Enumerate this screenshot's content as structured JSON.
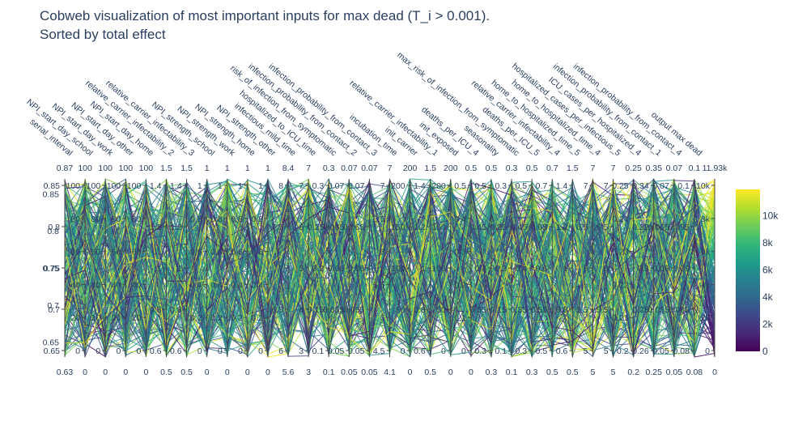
{
  "chart_data": {
    "type": "parallel_coordinates",
    "title_lines": [
      "Cobweb visualization of most important inputs for max dead (T_i > 0.001).",
      "Sorted by total effect"
    ],
    "dimensions": [
      {
        "label": "serial_interval",
        "max": "0.87",
        "min": "0.63",
        "ticks": [
          "0.85",
          "0.8",
          "0.75",
          "0.7",
          "0.65"
        ]
      },
      {
        "label": "NPI_start_day_school",
        "max": "100",
        "min": "0",
        "ticks": [
          "100",
          "80",
          "60",
          "40",
          "20",
          "0"
        ]
      },
      {
        "label": "NPI_start_day_work",
        "max": "100",
        "min": "0",
        "ticks": [
          "100",
          "80",
          "60",
          "40",
          "20",
          "0"
        ]
      },
      {
        "label": "NPI_start_day_other",
        "max": "100",
        "min": "0",
        "ticks": [
          "100",
          "80",
          "60",
          "40",
          "20",
          "0"
        ]
      },
      {
        "label": "NPI_start_day_home",
        "max": "100",
        "min": "0",
        "ticks": [
          "100",
          "80",
          "60",
          "40",
          "20",
          "0"
        ]
      },
      {
        "label": "relative_carrier_infectability_2",
        "max": "1.5",
        "min": "0.5",
        "ticks": [
          "1.4",
          "1.2",
          "1",
          "0.8",
          "0.6"
        ]
      },
      {
        "label": "relative_carrier_infectability_3",
        "max": "1.5",
        "min": "0.5",
        "ticks": [
          "1.4",
          "1.2",
          "1",
          "0.8",
          "0.6"
        ]
      },
      {
        "label": "NPI_strength_school",
        "max": "1",
        "min": "0",
        "ticks": [
          "1",
          "0.8",
          "0.6",
          "0.4",
          "0.2",
          "0"
        ]
      },
      {
        "label": "NPI_strength_work",
        "max": "1",
        "min": "0",
        "ticks": [
          "1",
          "0.8",
          "0.6",
          "0.4",
          "0.2",
          "0"
        ]
      },
      {
        "label": "NPI_strength_home",
        "max": "1",
        "min": "0",
        "ticks": [
          "1",
          "0.8",
          "0.6",
          "0.4",
          "0.2",
          "0"
        ]
      },
      {
        "label": "NPI_strength_other",
        "max": "1",
        "min": "0",
        "ticks": [
          "1",
          "0.8",
          "0.6",
          "0.4",
          "0.2",
          "0"
        ]
      },
      {
        "label": "infectious_mild_time",
        "max": "8.4",
        "min": "5.6",
        "ticks": [
          "8",
          "7.5",
          "7",
          "6.5",
          "6"
        ]
      },
      {
        "label": "hospitalized_to_ICU_time",
        "max": "7",
        "min": "3",
        "ticks": [
          "7",
          "6",
          "5",
          "4",
          "3"
        ]
      },
      {
        "label": "risk_of_infection_from_symptomatic",
        "max": "0.3",
        "min": "0.1",
        "ticks": [
          "0.3",
          "0.25",
          "0.2",
          "0.15",
          "0.1"
        ]
      },
      {
        "label": "infection_probability_from_contact_2",
        "max": "0.07",
        "min": "0.05",
        "ticks": [
          "0.07",
          "0.065",
          "0.06",
          "0.055",
          "0.05"
        ]
      },
      {
        "label": "infection_probability_from_contact_3",
        "max": "0.07",
        "min": "0.05",
        "ticks": [
          "0.07",
          "0.065",
          "0.06",
          "0.055",
          "0.05"
        ]
      },
      {
        "label": "incubation_time",
        "max": "7",
        "min": "4.1",
        "ticks": [
          "7",
          "6.5",
          "6",
          "5.5",
          "5",
          "4.5"
        ]
      },
      {
        "label": "init_carrier",
        "max": "200",
        "min": "0",
        "ticks": [
          "200",
          "150",
          "100",
          "50",
          "0"
        ]
      },
      {
        "label": "relative_carrier_infectability_1",
        "max": "1.5",
        "min": "0.5",
        "ticks": [
          "1.4",
          "1.2",
          "1",
          "0.8",
          "0.6"
        ]
      },
      {
        "label": "init_exposed",
        "max": "200",
        "min": "0",
        "ticks": [
          "200",
          "150",
          "100",
          "50",
          "0"
        ]
      },
      {
        "label": "deaths_per_ICU_4",
        "max": "0.5",
        "min": "0",
        "ticks": [
          "0.5",
          "0.4",
          "0.3",
          "0.2",
          "0.1",
          "0"
        ]
      },
      {
        "label": "seasonality",
        "max": "0.5",
        "min": "0.3",
        "ticks": [
          "0.5",
          "0.45",
          "0.4",
          "0.35",
          "0.3"
        ]
      },
      {
        "label": "max_risk_of_infection_from_symptomatic",
        "max": "0.3",
        "min": "0.1",
        "ticks": [
          "0.3",
          "0.25",
          "0.2",
          "0.15",
          "0.1"
        ]
      },
      {
        "label": "deaths_per_ICU_5",
        "max": "0.5",
        "min": "0.3",
        "ticks": [
          "0.5",
          "0.45",
          "0.4",
          "0.35",
          "0.3"
        ]
      },
      {
        "label": "relative_carrier_infectability_4",
        "max": "0.7",
        "min": "0.5",
        "ticks": [
          "0.7",
          "0.65",
          "0.6",
          "0.55",
          "0.5"
        ]
      },
      {
        "label": "home_to_hospitalized_time_5",
        "max": "1.5",
        "min": "0.5",
        "ticks": [
          "1.4",
          "1.2",
          "1",
          "0.8",
          "0.6"
        ]
      },
      {
        "label": "home_to_hospitalized_time_4",
        "max": "7",
        "min": "5",
        "ticks": [
          "7",
          "6.5",
          "6",
          "5.5",
          "5"
        ]
      },
      {
        "label": "hospitalized_cases_per_infectious_5",
        "max": "7",
        "min": "5",
        "ticks": [
          "7",
          "6.5",
          "6",
          "5.5",
          "5"
        ]
      },
      {
        "label": "ICU_cases_per_hospitalized_4",
        "max": "0.25",
        "min": "0.2",
        "ticks": [
          "0.25",
          "0.24",
          "0.23",
          "0.22",
          "0.21",
          "0.2"
        ]
      },
      {
        "label": "infection_probability_from_contact_1",
        "max": "0.35",
        "min": "0.25",
        "ticks": [
          "0.34",
          "0.32",
          "0.3",
          "0.28",
          "0.26"
        ]
      },
      {
        "label": "infection_probability_from_contact_4",
        "max": "0.07",
        "min": "0.05",
        "ticks": [
          "0.07",
          "0.065",
          "0.06",
          "0.055",
          "0.05"
        ]
      },
      {
        "label": "output max dead",
        "max": "0.1",
        "min": "0.08",
        "ticks": [
          "0.1",
          "0.095",
          "0.09",
          "0.085",
          "0.08"
        ]
      },
      {
        "label": "",
        "max": "11.93k",
        "min": "0",
        "ticks": [
          "10k",
          "8k",
          "6k",
          "4k",
          "2k",
          "0"
        ]
      }
    ],
    "left_axis": {
      "ticks": [
        "0.85",
        "0.8",
        "0.75",
        "0.7",
        "0.65"
      ],
      "range": [
        0.63,
        0.87
      ]
    },
    "colorscale": {
      "name": "Viridis",
      "range": [
        0,
        11930
      ],
      "ticks": [
        "0",
        "2k",
        "4k",
        "6k",
        "8k",
        "10k"
      ],
      "colors": [
        "#440154",
        "#482878",
        "#3e4989",
        "#31688e",
        "#26828e",
        "#1f9e89",
        "#35b779",
        "#6ece58",
        "#b5de2b",
        "#fde725"
      ]
    },
    "n_lines_shown": 200
  }
}
